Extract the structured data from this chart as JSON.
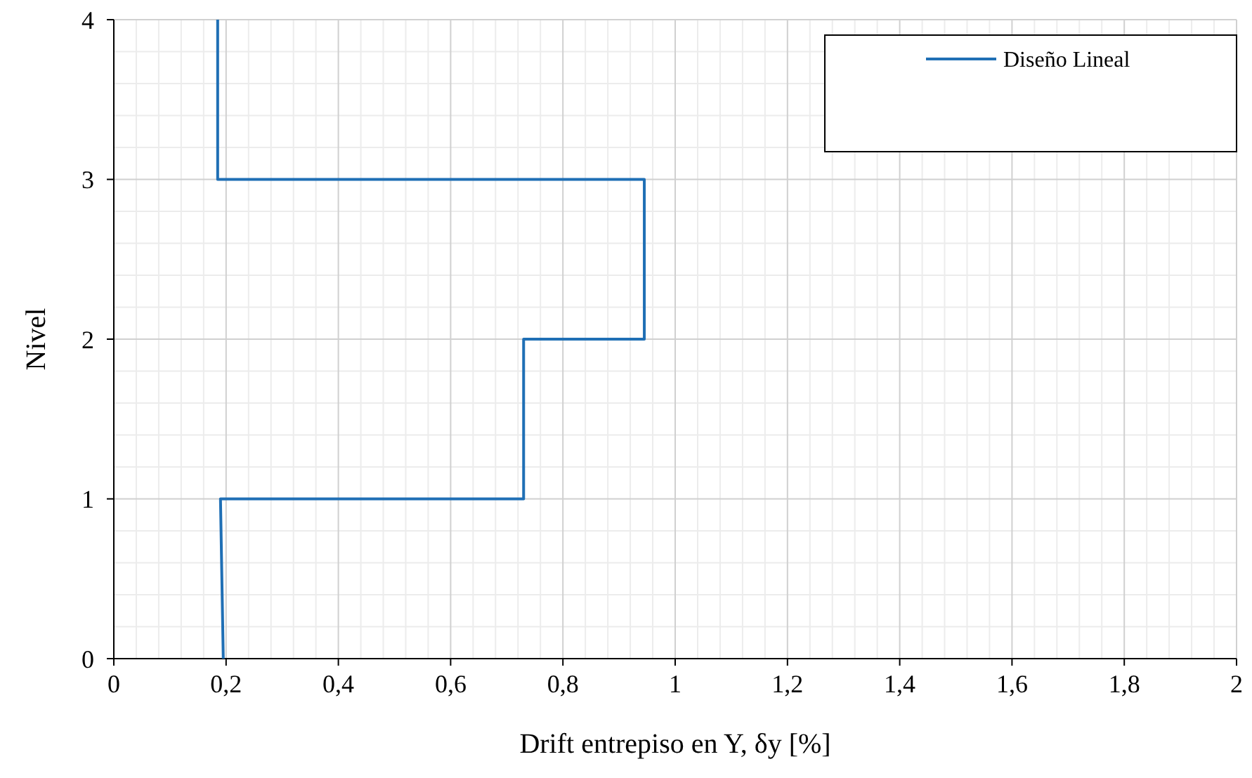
{
  "chart_data": {
    "type": "line",
    "xlabel": "Drift entrepiso en Y, δy [%]",
    "ylabel": "Nivel",
    "series": [
      {
        "name": "Diseño Lineal",
        "color": "#1f6fb5",
        "x": [
          0.195,
          0.19,
          0.73,
          0.73,
          0.945,
          0.945,
          0.185,
          0.185
        ],
        "values": [
          0,
          1,
          1,
          2,
          2,
          3,
          3,
          4
        ]
      }
    ],
    "xlim": [
      0,
      2
    ],
    "xticks": [
      0,
      {
        "value": 0.2,
        "label": "0,2"
      },
      {
        "value": 0.4,
        "label": "0,4"
      },
      {
        "value": 0.6,
        "label": "0,6"
      },
      {
        "value": 0.8,
        "label": "0,8"
      },
      1,
      {
        "value": 1.2,
        "label": "1,2"
      },
      {
        "value": 1.4,
        "label": "1,4"
      },
      {
        "value": 1.6,
        "label": "1,6"
      },
      {
        "value": 1.8,
        "label": "1,8"
      },
      2
    ],
    "ylim": [
      0,
      4
    ],
    "yticks": [
      0,
      1,
      2,
      3,
      4
    ],
    "grid": true,
    "legend": "top right",
    "line_style": "solid",
    "marker": "none"
  }
}
